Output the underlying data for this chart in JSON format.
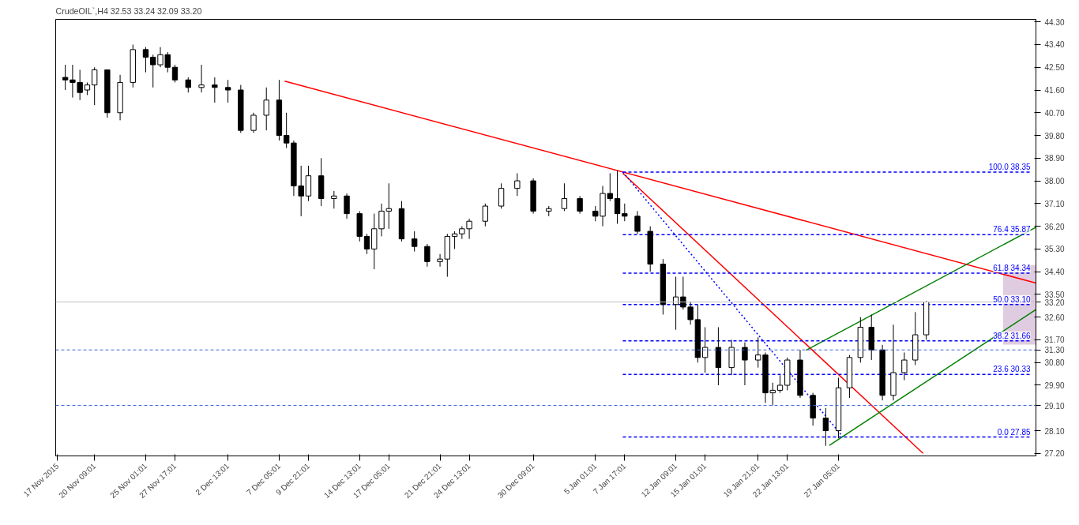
{
  "chart_data": {
    "type": "candlestick",
    "title": "CrudeOIL`,H4  32.53 33.24 32.09 33.20",
    "x": [
      "2015-11-17T17:00",
      "2015-11-18T09:00",
      "2015-11-19T01:00",
      "2015-11-19T17:00",
      "2015-11-20T09:00",
      "2015-11-21T13:00",
      "2015-11-22T17:00",
      "2015-11-23T21:00",
      "2015-11-25T01:00",
      "2015-11-25T17:00",
      "2015-11-26T09:00",
      "2015-11-27T01:00",
      "2015-11-27T17:00",
      "2015-11-28T22:00",
      "2015-11-30T03:00",
      "2015-12-01T08:00",
      "2015-12-02T13:00",
      "2015-12-03T17:00",
      "2015-12-04T21:00",
      "2015-12-06T01:00",
      "2015-12-07T05:00",
      "2015-12-07T21:00",
      "2015-12-08T13:00",
      "2015-12-09T05:00",
      "2015-12-09T21:00",
      "2015-12-11T01:00",
      "2015-12-12T05:00",
      "2015-12-13T09:00",
      "2015-12-14T13:00",
      "2015-12-15T05:00",
      "2015-12-15T21:00",
      "2015-12-16T13:00",
      "2015-12-17T05:00",
      "2015-12-18T09:00",
      "2015-12-19T13:00",
      "2015-12-20T17:00",
      "2015-12-21T21:00",
      "2015-12-22T13:00",
      "2015-12-23T05:00",
      "2015-12-23T21:00",
      "2015-12-24T13:00",
      "2015-12-26T00:00",
      "2015-12-27T11:00",
      "2015-12-28T22:00",
      "2015-12-30T09:00",
      "2015-12-31T19:00",
      "2016-01-02T05:00",
      "2016-01-03T15:00",
      "2016-01-05T01:00",
      "2016-01-05T17:00",
      "2016-01-06T09:00",
      "2016-01-07T01:00",
      "2016-01-07T17:00",
      "2016-01-08T21:00",
      "2016-01-10T01:00",
      "2016-01-11T05:00",
      "2016-01-12T09:00",
      "2016-01-13T01:00",
      "2016-01-13T17:00",
      "2016-01-14T09:00",
      "2016-01-15T01:00",
      "2016-01-16T06:00",
      "2016-01-17T11:00",
      "2016-01-18T16:00",
      "2016-01-19T21:00",
      "2016-01-20T13:00",
      "2016-01-21T05:00",
      "2016-01-21T21:00",
      "2016-01-22T13:00",
      "2016-01-23T17:00",
      "2016-01-24T21:00",
      "2016-01-26T01:00",
      "2016-01-27T05:00",
      "2016-01-28T05:00",
      "2016-01-29T05:00",
      "2016-01-30T05:00",
      "2016-01-31T05:00",
      "2016-02-01T05:00",
      "2016-02-02T05:00",
      "2016-02-03T05:00",
      "2016-02-04T05:00"
    ],
    "ohlc": [
      [
        42.1,
        42.6,
        41.6,
        42.0
      ],
      [
        42.0,
        42.6,
        41.3,
        41.9
      ],
      [
        41.9,
        42.4,
        41.2,
        41.5
      ],
      [
        41.6,
        41.9,
        41.4,
        41.8
      ],
      [
        41.8,
        42.5,
        41.0,
        42.4
      ],
      [
        42.4,
        42.4,
        40.5,
        40.7
      ],
      [
        40.7,
        42.2,
        40.4,
        41.9
      ],
      [
        41.9,
        43.4,
        41.7,
        43.2
      ],
      [
        43.2,
        43.3,
        42.3,
        42.9
      ],
      [
        42.9,
        43.0,
        41.7,
        42.6
      ],
      [
        42.6,
        43.3,
        42.5,
        43.0
      ],
      [
        43.0,
        43.1,
        42.3,
        42.5
      ],
      [
        42.5,
        42.6,
        41.9,
        42.0
      ],
      [
        42.0,
        42.1,
        41.5,
        41.7
      ],
      [
        41.7,
        42.6,
        41.5,
        41.8
      ],
      [
        41.8,
        42.1,
        41.1,
        41.7
      ],
      [
        41.7,
        42.0,
        41.1,
        41.6
      ],
      [
        41.6,
        41.8,
        39.9,
        40.0
      ],
      [
        40.0,
        40.7,
        39.9,
        40.6
      ],
      [
        40.6,
        41.7,
        40.0,
        41.2
      ],
      [
        41.2,
        42.0,
        39.6,
        39.8
      ],
      [
        39.8,
        40.7,
        39.3,
        39.5
      ],
      [
        39.5,
        39.6,
        37.4,
        37.8
      ],
      [
        37.8,
        38.6,
        36.6,
        37.4
      ],
      [
        37.4,
        38.6,
        37.2,
        38.2
      ],
      [
        38.2,
        38.9,
        37.0,
        37.3
      ],
      [
        37.3,
        37.6,
        36.9,
        37.4
      ],
      [
        37.4,
        37.5,
        36.5,
        36.7
      ],
      [
        36.7,
        36.8,
        35.6,
        35.8
      ],
      [
        35.8,
        35.9,
        35.1,
        35.3
      ],
      [
        35.3,
        36.7,
        34.5,
        36.1
      ],
      [
        36.1,
        37.1,
        35.8,
        36.8
      ],
      [
        36.8,
        37.9,
        36.1,
        36.9
      ],
      [
        36.9,
        37.2,
        35.6,
        35.7
      ],
      [
        35.7,
        36.0,
        35.2,
        35.4
      ],
      [
        35.4,
        35.5,
        34.6,
        34.8
      ],
      [
        34.8,
        35.1,
        34.6,
        34.9
      ],
      [
        34.9,
        35.9,
        34.2,
        35.8
      ],
      [
        35.8,
        36.0,
        35.3,
        35.9
      ],
      [
        35.9,
        36.2,
        35.7,
        36.1
      ],
      [
        36.1,
        36.5,
        35.7,
        36.4
      ],
      [
        36.4,
        37.1,
        36.2,
        37.0
      ],
      [
        37.0,
        37.9,
        36.9,
        37.7
      ],
      [
        37.7,
        38.3,
        37.4,
        38.0
      ],
      [
        38.0,
        38.1,
        36.7,
        36.8
      ],
      [
        36.8,
        37.0,
        36.6,
        36.9
      ],
      [
        36.9,
        37.9,
        36.8,
        37.3
      ],
      [
        37.3,
        37.4,
        36.7,
        36.8
      ],
      [
        36.8,
        37.0,
        36.4,
        36.6
      ],
      [
        36.6,
        37.8,
        36.2,
        37.5
      ],
      [
        37.5,
        38.3,
        37.2,
        37.3
      ],
      [
        37.3,
        38.4,
        36.3,
        36.7
      ],
      [
        36.7,
        37.1,
        36.4,
        36.6
      ],
      [
        36.6,
        36.8,
        35.9,
        36.0
      ],
      [
        36.0,
        36.2,
        34.4,
        34.7
      ],
      [
        34.7,
        34.9,
        32.7,
        33.1
      ],
      [
        33.1,
        34.2,
        32.1,
        33.4
      ],
      [
        33.4,
        34.2,
        32.9,
        33.0
      ],
      [
        33.0,
        33.2,
        32.3,
        32.5
      ],
      [
        32.5,
        33.1,
        30.8,
        31.0
      ],
      [
        31.0,
        32.2,
        30.4,
        31.4
      ],
      [
        31.4,
        32.2,
        29.9,
        30.6
      ],
      [
        30.6,
        31.7,
        30.3,
        31.4
      ],
      [
        31.4,
        31.6,
        29.9,
        30.9
      ],
      [
        30.9,
        31.8,
        30.6,
        31.1
      ],
      [
        31.1,
        31.2,
        29.2,
        29.6
      ],
      [
        29.6,
        30.0,
        29.1,
        29.7
      ],
      [
        29.7,
        30.3,
        29.6,
        29.9
      ],
      [
        29.9,
        31.0,
        29.7,
        30.9
      ],
      [
        30.9,
        31.3,
        29.4,
        29.5
      ],
      [
        29.5,
        29.6,
        28.3,
        28.6
      ],
      [
        28.6,
        29.0,
        27.5,
        28.1
      ],
      [
        28.1,
        30.2,
        27.8,
        29.8
      ],
      [
        29.8,
        31.1,
        29.4,
        31.0
      ],
      [
        31.0,
        32.6,
        30.8,
        32.2
      ],
      [
        32.2,
        32.7,
        30.9,
        31.3
      ],
      [
        31.3,
        31.5,
        29.3,
        29.5
      ],
      [
        29.5,
        32.3,
        29.3,
        30.4
      ],
      [
        30.4,
        31.2,
        30.1,
        30.9
      ],
      [
        30.9,
        32.8,
        30.7,
        31.9
      ],
      [
        31.9,
        33.24,
        31.7,
        33.2
      ]
    ],
    "series": [
      {
        "type": "bar",
        "color": "#d8bfd8",
        "x": [
          "2016-02-12T17:00"
        ],
        "base": [
          31.51
        ],
        "values": [
          3.15
        ]
      },
      {
        "type": "line",
        "color": "#ff0000",
        "line_style": "solid",
        "x": [
          "2015-12-07T17:00",
          "2016-02-14T05:00"
        ],
        "values": [
          41.95,
          33.95
        ]
      },
      {
        "type": "line",
        "color": "#ff0000",
        "line_style": "solid",
        "x": [
          "2016-01-07T13:00",
          "2016-02-03T22:00"
        ],
        "values": [
          38.3,
          27.2
        ]
      },
      {
        "type": "line",
        "color": "#0000ff",
        "line_style": "dotted",
        "x": [
          "2016-01-07T13:00",
          "2016-01-27T15:00"
        ],
        "values": [
          38.35,
          27.85
        ]
      },
      {
        "type": "line",
        "color": "#008000",
        "line_style": "solid",
        "x": [
          "2016-01-24T06:00",
          "2016-02-14T05:00"
        ],
        "values": [
          31.29,
          36.16
        ]
      },
      {
        "type": "line",
        "color": "#008000",
        "line_style": "solid",
        "x": [
          "2016-01-26T09:00",
          "2016-02-14T05:00"
        ],
        "values": [
          27.52,
          32.9
        ]
      },
      {
        "type": "line",
        "color": "#0000ff",
        "line_style": "dashed",
        "x": [
          "2016-01-07T13:00",
          "2016-02-13T17:00"
        ],
        "values": [
          38.35,
          38.35
        ]
      },
      {
        "type": "line",
        "color": "#0000ff",
        "line_style": "dashed",
        "x": [
          "2016-01-07T13:00",
          "2016-02-13T17:00"
        ],
        "values": [
          35.87,
          35.87
        ]
      },
      {
        "type": "line",
        "color": "#0000ff",
        "line_style": "dashed",
        "x": [
          "2016-01-07T13:00",
          "2016-02-13T17:00"
        ],
        "values": [
          34.34,
          34.34
        ]
      },
      {
        "type": "line",
        "color": "#0000ff",
        "line_style": "dashed",
        "x": [
          "2016-01-07T13:00",
          "2016-02-13T17:00"
        ],
        "values": [
          33.1,
          33.1
        ]
      },
      {
        "type": "line",
        "color": "#0000ff",
        "line_style": "dashed",
        "x": [
          "2016-01-07T13:00",
          "2016-02-13T17:00"
        ],
        "values": [
          31.66,
          31.66
        ]
      },
      {
        "type": "line",
        "color": "#0000ff",
        "line_style": "dashed",
        "x": [
          "2016-01-07T13:00",
          "2016-02-13T17:00"
        ],
        "values": [
          30.33,
          30.33
        ]
      },
      {
        "type": "line",
        "color": "#0000ff",
        "line_style": "dashed",
        "x": [
          "2016-01-07T13:00",
          "2016-02-13T17:00"
        ],
        "values": [
          27.85,
          27.85
        ]
      }
    ],
    "ref_lines": [
      {
        "axis": "y",
        "value": 33.2,
        "label": "33.20",
        "color": "#c0c0c0",
        "line_style": "solid"
      },
      {
        "axis": "y",
        "value": 31.3,
        "label": "31.30",
        "color": "#3c64dc",
        "line_style": "dashed"
      },
      {
        "axis": "y",
        "value": 29.1,
        "label": "29.10",
        "color": "#3c64dc",
        "line_style": "dashed"
      }
    ],
    "annotations": [
      {
        "text": "100.0 38.35",
        "x": "2016-02-13T17:00",
        "y": 38.35
      },
      {
        "text": "76.4 35.87",
        "x": "2016-02-13T17:00",
        "y": 35.87
      },
      {
        "text": "61.8 34.34",
        "x": "2016-02-13T17:00",
        "y": 34.34
      },
      {
        "text": "50.0 33.10",
        "x": "2016-02-13T17:00",
        "y": 33.1
      },
      {
        "text": "38.2 31.66",
        "x": "2016-02-13T17:00",
        "y": 31.66
      },
      {
        "text": "23.6 30.33",
        "x": "2016-02-13T17:00",
        "y": 30.33
      },
      {
        "text": "0.0 27.85",
        "x": "2016-02-13T17:00",
        "y": 27.85
      }
    ],
    "xlim": [
      "2015-11-16T20:00",
      "2016-02-14T05:00"
    ],
    "xticks": [
      {
        "value": "2015-11-17",
        "label": "17 Nov 2015"
      },
      {
        "value": "2015-11-20T09:01",
        "label": "20 Nov 09:01"
      },
      {
        "value": "2015-11-25T01:01",
        "label": "25 Nov 01:01"
      },
      {
        "value": "2015-11-27T17:01",
        "label": "27 Nov 17:01"
      },
      {
        "value": "2015-12-02T13:01",
        "label": "2 Dec 13:01"
      },
      {
        "value": "2015-12-07T05:01",
        "label": "7 Dec 05:01"
      },
      {
        "value": "2015-12-09T21:01",
        "label": "9 Dec 21:01"
      },
      {
        "value": "2015-12-14T13:01",
        "label": "14 Dec 13:01"
      },
      {
        "value": "2015-12-17T05:01",
        "label": "17 Dec 05:01"
      },
      {
        "value": "2015-12-21T21:01",
        "label": "21 Dec 21:01"
      },
      {
        "value": "2015-12-24T13:01",
        "label": "24 Dec 13:01"
      },
      {
        "value": "2015-12-30T09:01",
        "label": "30 Dec 09:01"
      },
      {
        "value": "2016-01-05T01:01",
        "label": "5 Jan 01:01"
      },
      {
        "value": "2016-01-07T17:01",
        "label": "7 Jan 17:01"
      },
      {
        "value": "2016-01-12T09:01",
        "label": "12 Jan 09:01"
      },
      {
        "value": "2016-01-15T01:01",
        "label": "15 Jan 01:01"
      },
      {
        "value": "2016-01-19T21:01",
        "label": "19 Jan 21:01"
      },
      {
        "value": "2016-01-22T13:01",
        "label": "22 Jan 13:01"
      },
      {
        "value": "2016-01-27T05:01",
        "label": "27 Jan 05:01"
      }
    ],
    "ylim": [
      27.1,
      44.4
    ],
    "yticks": [
      {
        "value": 27.2,
        "label": "27.20"
      },
      {
        "value": 28.1,
        "label": "28.10"
      },
      {
        "value": 29.9,
        "label": "29.90"
      },
      {
        "value": 30.8,
        "label": "30.80"
      },
      {
        "value": 31.7,
        "label": "31.70"
      },
      {
        "value": 32.6,
        "label": "32.60"
      },
      {
        "value": 33.5,
        "label": "33.50"
      },
      {
        "value": 34.4,
        "label": "34.40"
      },
      {
        "value": 35.3,
        "label": "35.30"
      },
      {
        "value": 36.2,
        "label": "36.20"
      },
      {
        "value": 37.1,
        "label": "37.10"
      },
      {
        "value": 38.0,
        "label": "38.00"
      },
      {
        "value": 38.9,
        "label": "38.90"
      },
      {
        "value": 39.8,
        "label": "39.80"
      },
      {
        "value": 40.7,
        "label": "40.70"
      },
      {
        "value": 41.6,
        "label": "41.60"
      },
      {
        "value": 42.5,
        "label": "42.50"
      },
      {
        "value": 43.4,
        "label": "43.40"
      },
      {
        "value": 44.3,
        "label": "44.30"
      }
    ]
  }
}
